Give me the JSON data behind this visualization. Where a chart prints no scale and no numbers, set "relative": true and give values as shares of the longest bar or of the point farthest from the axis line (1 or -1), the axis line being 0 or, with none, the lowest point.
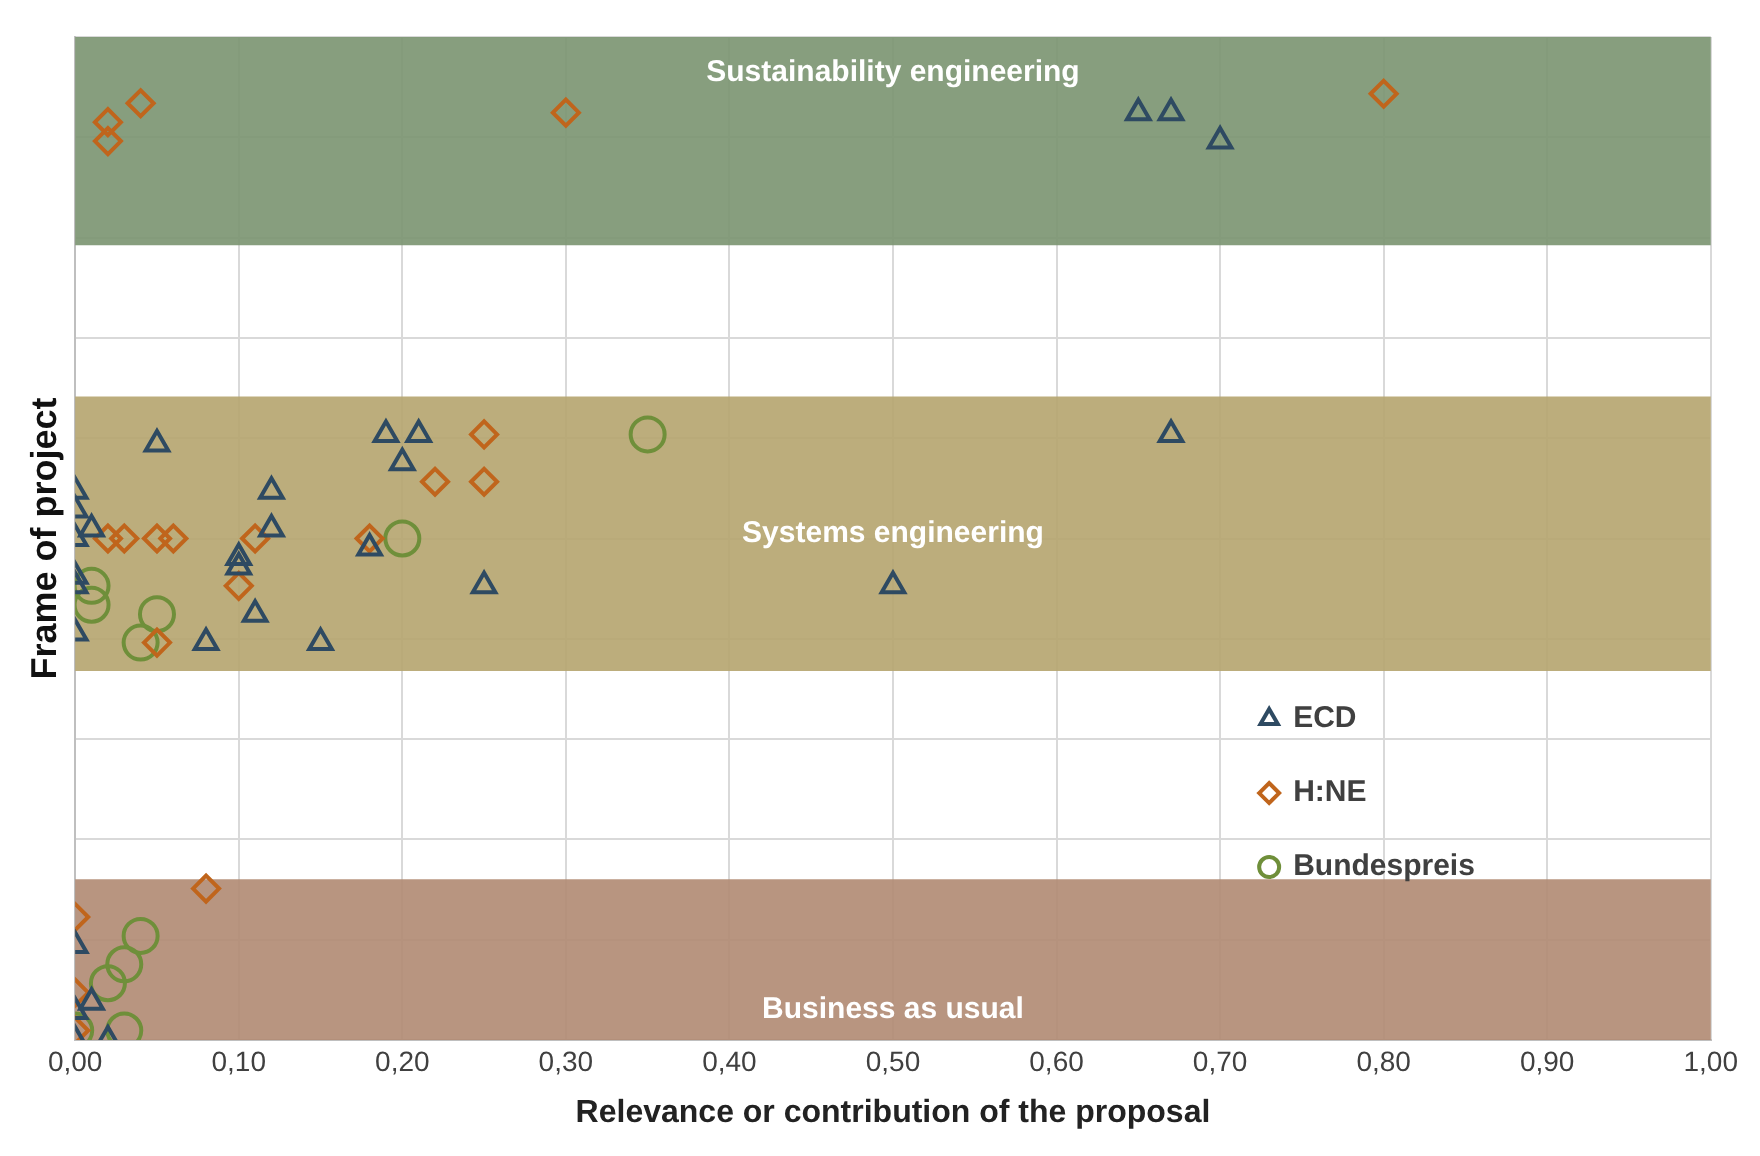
{
  "chart_data": {
    "type": "scatter",
    "relative": true,
    "xlabel": "Relevance or contribution of the proposal",
    "ylabel": "Frame of project",
    "xlim": [
      0,
      1
    ],
    "xticks": [
      {
        "value": 0,
        "label": "0,00"
      },
      {
        "value": 0.1,
        "label": "0,10"
      },
      {
        "value": 0.2,
        "label": "0,20"
      },
      {
        "value": 0.3,
        "label": "0,30"
      },
      {
        "value": 0.4,
        "label": "0,40"
      },
      {
        "value": 0.5,
        "label": "0,50"
      },
      {
        "value": 0.6,
        "label": "0,60"
      },
      {
        "value": 0.7,
        "label": "0,70"
      },
      {
        "value": 0.8,
        "label": "0,80"
      },
      {
        "value": 0.9,
        "label": "0,90"
      },
      {
        "value": 1,
        "label": "1,00"
      }
    ],
    "grid": true,
    "tick_labels": "x",
    "legend": "right",
    "bands": [
      {
        "axis": "y",
        "from": 0.84,
        "to": 1.06,
        "label": "Sustainability engineering",
        "color": "#7a9470"
      },
      {
        "axis": "y",
        "from": 0.39,
        "to": 0.68,
        "label": "Systems engineering",
        "color": "#b5a46e"
      },
      {
        "axis": "y",
        "from": 0,
        "to": 0.17,
        "label": "Business as usual",
        "color": "#b08a72"
      }
    ],
    "series": [
      {
        "name": "ECD",
        "color": "#2e4a62",
        "marker": "triangle",
        "x": [
          0.65,
          0.67,
          0.7,
          0.05,
          0.19,
          0.21,
          0.2,
          0.67,
          0.0,
          0.0,
          0.0,
          0.0,
          0.0,
          0.0,
          0.01,
          0.12,
          0.12,
          0.1,
          0.1,
          0.11,
          0.08,
          0.15,
          0.18,
          0.25,
          0.5,
          0.0,
          0.0,
          0.01,
          0.02,
          0.0
        ],
        "values": [
          0.98,
          0.98,
          0.95,
          0.63,
          0.64,
          0.64,
          0.61,
          0.64,
          0.58,
          0.56,
          0.53,
          0.49,
          0.48,
          0.43,
          0.54,
          0.58,
          0.54,
          0.51,
          0.5,
          0.45,
          0.42,
          0.42,
          0.52,
          0.48,
          0.48,
          0.1,
          0.03,
          0.04,
          0,
          0
        ]
      },
      {
        "name": "H:NE",
        "color": "#c0651c",
        "marker": "diamond",
        "x": [
          0.02,
          0.02,
          0.04,
          0.3,
          0.8,
          0.25,
          0.22,
          0.25,
          0.02,
          0.03,
          0.05,
          0.06,
          0.11,
          0.18,
          0.1,
          0.05,
          0.08,
          0.0,
          0.0,
          0.0
        ],
        "values": [
          0.97,
          0.95,
          0.99,
          0.98,
          1.0,
          0.64,
          0.59,
          0.59,
          0.53,
          0.53,
          0.53,
          0.53,
          0.53,
          0.53,
          0.48,
          0.42,
          0.16,
          0.13,
          0.05,
          0.01
        ]
      },
      {
        "name": "Bundespreis",
        "color": "#6f8f3a",
        "marker": "circle",
        "x": [
          0.35,
          0.2,
          0.01,
          0.01,
          0.05,
          0.04,
          0.04,
          0.03,
          0.02,
          0.03,
          0.0
        ],
        "values": [
          0.64,
          0.53,
          0.48,
          0.46,
          0.45,
          0.42,
          0.11,
          0.08,
          0.06,
          0.01,
          0.01
        ]
      }
    ]
  }
}
